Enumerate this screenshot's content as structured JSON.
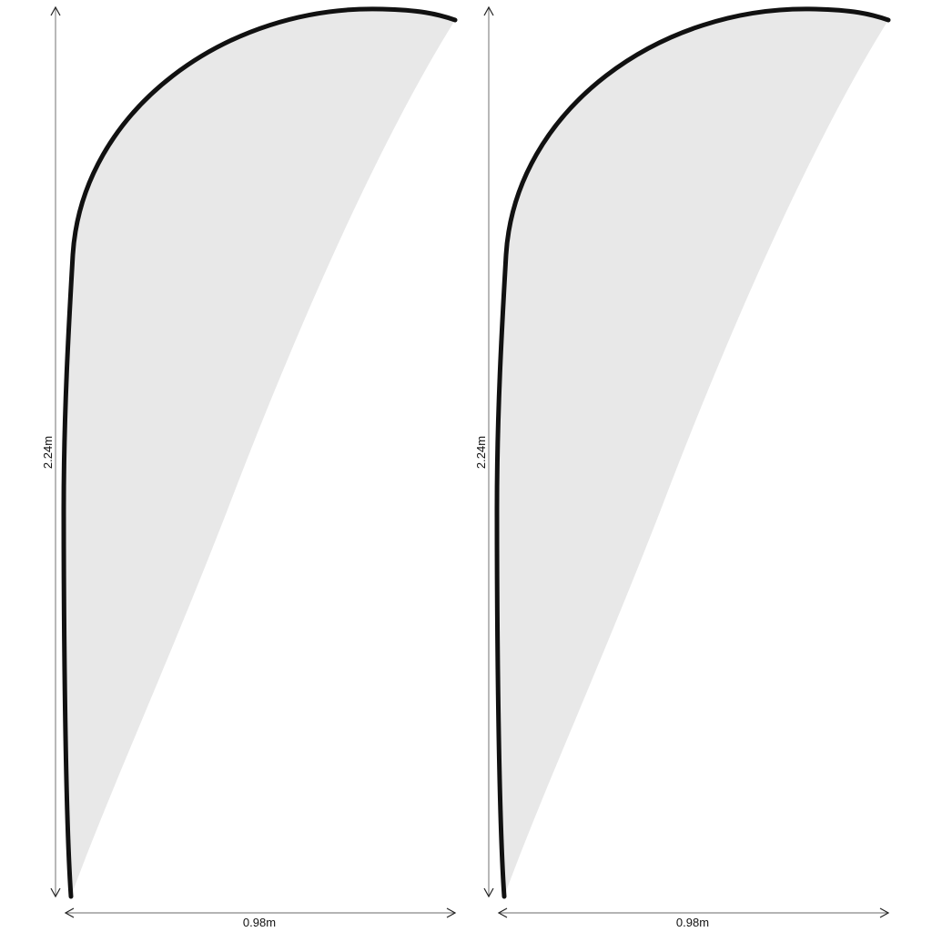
{
  "flags": [
    {
      "height_label": "2.24m",
      "width_label": "0.98m"
    },
    {
      "height_label": "2.24m",
      "width_label": "0.98m"
    }
  ],
  "colors": {
    "fabric": "#e8e8e8",
    "pole": "#111111",
    "dimension_line": "#888888"
  }
}
